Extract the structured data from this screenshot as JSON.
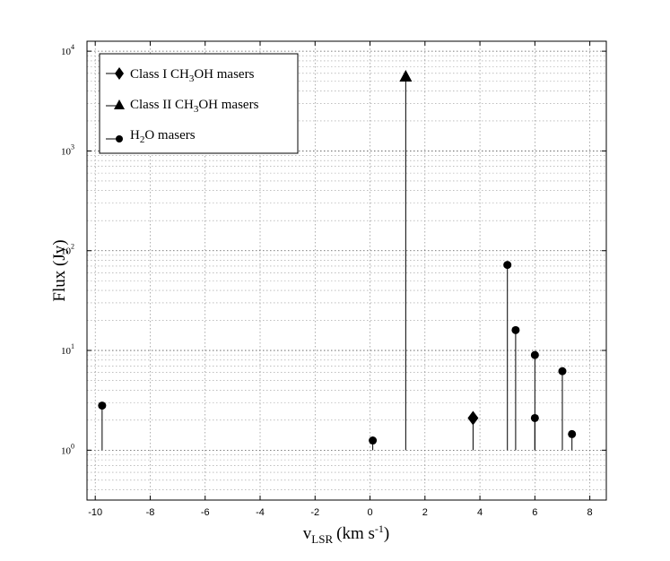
{
  "chart_data": {
    "type": "scatter",
    "subtype": "stem",
    "xlabel": {
      "base": "v",
      "sub": "LSR",
      "units_pre": "(km s",
      "units_sup": "-1",
      "units_post": ")"
    },
    "ylabel": "Flux (Jy)",
    "xlim": [
      -10.3,
      8.6
    ],
    "x_ticks": [
      -10,
      -8,
      -6,
      -4,
      -2,
      0,
      2,
      4,
      6,
      8
    ],
    "y_scale": "log",
    "ylim_log10": [
      -0.5,
      4.1
    ],
    "stem_baseline": 1,
    "y_ticks": [
      {
        "base": "10",
        "exp": "0",
        "value": 1
      },
      {
        "base": "10",
        "exp": "1",
        "value": 10
      },
      {
        "base": "10",
        "exp": "2",
        "value": 100
      },
      {
        "base": "10",
        "exp": "3",
        "value": 1000
      },
      {
        "base": "10",
        "exp": "4",
        "value": 10000
      }
    ],
    "grid": true,
    "legend_position": "top-left",
    "series": [
      {
        "name": "Class I CH3OH masers",
        "legend": {
          "pre": "Class I CH",
          "sub": "3",
          "post": "OH masers"
        },
        "marker": "diamond",
        "points": [
          {
            "x": 3.75,
            "y": 2.1
          }
        ]
      },
      {
        "name": "Class II CH3OH masers",
        "legend": {
          "pre": "Class II CH",
          "sub": "3",
          "post": "OH masers"
        },
        "marker": "triangle",
        "points": [
          {
            "x": 1.3,
            "y": 5500
          }
        ]
      },
      {
        "name": "H2O masers",
        "legend": {
          "pre": "H",
          "sub": "2",
          "post": "O masers"
        },
        "marker": "circle",
        "points": [
          {
            "x": -9.75,
            "y": 2.8
          },
          {
            "x": 0.1,
            "y": 1.25
          },
          {
            "x": 5.0,
            "y": 72
          },
          {
            "x": 5.3,
            "y": 16
          },
          {
            "x": 6.0,
            "y": 9.0
          },
          {
            "x": 6.0,
            "y": 2.1
          },
          {
            "x": 7.0,
            "y": 6.2
          },
          {
            "x": 7.35,
            "y": 1.45
          }
        ]
      }
    ]
  }
}
